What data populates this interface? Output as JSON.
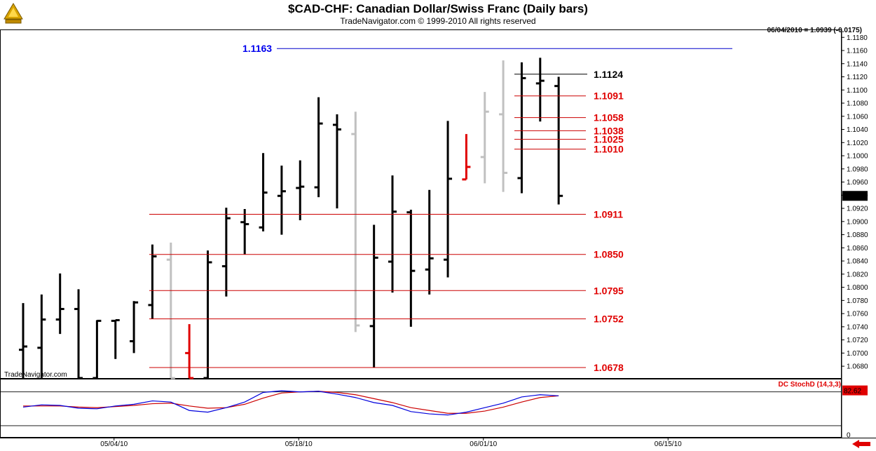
{
  "header": {
    "title": "$CAD-CHF:  Canadian Dollar/Swiss Franc  (Daily bars)",
    "subtitle": "TradeNavigator.com © 1999-2010 All rights reserved",
    "last_quote": "06/04/2010 = 1.0939 (-0.0175)"
  },
  "watermark": "TradeNavigator.com",
  "indicator": {
    "label": "DC StochD (14,3,3)",
    "last_value": "82.62",
    "scale_zero": "0"
  },
  "colors": {
    "up_bar": "#000000",
    "down_bar": "#000000",
    "gray_bar": "#c0c0c0",
    "red_bar": "#e00000",
    "level_line": "#cc0000",
    "level_text": "#e00000",
    "top_line": "#0000cc",
    "top_text": "#0000ee",
    "resist_line": "#000000",
    "stoch_k": "#0000dd",
    "stoch_d": "#cc0000"
  },
  "chart_data": {
    "type": "ohlc",
    "title": "$CAD-CHF:  Canadian Dollar/Swiss Franc  (Daily bars)",
    "ylim": [
      1.0662,
      1.1192
    ],
    "y_ticks": [
      "1.1180",
      "1.1160",
      "1.1140",
      "1.1120",
      "1.1100",
      "1.1080",
      "1.1060",
      "1.1040",
      "1.1020",
      "1.1000",
      "1.0980",
      "1.0960",
      "1.0940",
      "1.0920",
      "1.0900",
      "1.0880",
      "1.0860",
      "1.0840",
      "1.0820",
      "1.0800",
      "1.0780",
      "1.0760",
      "1.0740",
      "1.0720",
      "1.0700",
      "1.0680"
    ],
    "last_price_label": "1.0939",
    "x_labels": [
      {
        "label": "05/04/10",
        "index": 5
      },
      {
        "label": "05/18/10",
        "index": 15
      },
      {
        "label": "06/01/10",
        "index": 25
      },
      {
        "label": "06/15/10",
        "index": 35
      }
    ],
    "bars": [
      {
        "i": 0,
        "o": 1.0705,
        "h": 1.0776,
        "l": 1.064,
        "c": 1.071,
        "color": "up"
      },
      {
        "i": 1,
        "o": 1.0708,
        "h": 1.0789,
        "l": 1.064,
        "c": 1.0751,
        "color": "up"
      },
      {
        "i": 2,
        "o": 1.0751,
        "h": 1.0821,
        "l": 1.0729,
        "c": 1.0767,
        "color": "up"
      },
      {
        "i": 3,
        "o": 1.0767,
        "h": 1.0797,
        "l": 1.064,
        "c": 1.064,
        "color": "down"
      },
      {
        "i": 4,
        "o": 1.064,
        "h": 1.075,
        "l": 1.064,
        "c": 1.0749,
        "color": "up"
      },
      {
        "i": 5,
        "o": 1.0749,
        "h": 1.075,
        "l": 1.0691,
        "c": 1.075,
        "color": "up"
      },
      {
        "i": 6,
        "o": 1.0718,
        "h": 1.0779,
        "l": 1.07,
        "c": 1.0777,
        "color": "up"
      },
      {
        "i": 7,
        "o": 1.0773,
        "h": 1.0865,
        "l": 1.0752,
        "c": 1.0847,
        "color": "up"
      },
      {
        "i": 8,
        "o": 1.0842,
        "h": 1.0868,
        "l": 1.064,
        "c": 1.064,
        "color": "gray"
      },
      {
        "i": 9,
        "o": 1.07,
        "h": 1.0744,
        "l": 1.064,
        "c": 1.064,
        "color": "red"
      },
      {
        "i": 10,
        "o": 1.064,
        "h": 1.0856,
        "l": 1.064,
        "c": 1.0838,
        "color": "up"
      },
      {
        "i": 11,
        "o": 1.0832,
        "h": 1.0921,
        "l": 1.0786,
        "c": 1.0905,
        "color": "up"
      },
      {
        "i": 12,
        "o": 1.0899,
        "h": 1.0919,
        "l": 1.085,
        "c": 1.0896,
        "color": "up"
      },
      {
        "i": 13,
        "o": 1.0891,
        "h": 1.1004,
        "l": 1.0885,
        "c": 1.0944,
        "color": "up"
      },
      {
        "i": 14,
        "o": 1.0939,
        "h": 1.0985,
        "l": 1.088,
        "c": 1.0946,
        "color": "up"
      },
      {
        "i": 15,
        "o": 1.0951,
        "h": 1.0993,
        "l": 1.0902,
        "c": 1.0953,
        "color": "up"
      },
      {
        "i": 16,
        "o": 1.0952,
        "h": 1.1089,
        "l": 1.0937,
        "c": 1.1049,
        "color": "up"
      },
      {
        "i": 17,
        "o": 1.1047,
        "h": 1.1063,
        "l": 1.092,
        "c": 1.104,
        "color": "down"
      },
      {
        "i": 18,
        "o": 1.1033,
        "h": 1.1067,
        "l": 1.0732,
        "c": 1.0742,
        "color": "gray"
      },
      {
        "i": 19,
        "o": 1.0741,
        "h": 1.0895,
        "l": 1.0678,
        "c": 1.0845,
        "color": "up"
      },
      {
        "i": 20,
        "o": 1.0839,
        "h": 1.097,
        "l": 1.0792,
        "c": 1.0915,
        "color": "up"
      },
      {
        "i": 21,
        "o": 1.0914,
        "h": 1.0918,
        "l": 1.074,
        "c": 1.0825,
        "color": "down"
      },
      {
        "i": 22,
        "o": 1.0827,
        "h": 1.0948,
        "l": 1.0789,
        "c": 1.0844,
        "color": "up"
      },
      {
        "i": 23,
        "o": 1.0842,
        "h": 1.1053,
        "l": 1.0815,
        "c": 1.0965,
        "color": "up"
      },
      {
        "i": 24,
        "o": 1.0964,
        "h": 1.1033,
        "l": 1.0964,
        "c": 1.0983,
        "color": "red"
      },
      {
        "i": 25,
        "o": 1.0998,
        "h": 1.1097,
        "l": 1.0958,
        "c": 1.1067,
        "color": "gray"
      },
      {
        "i": 26,
        "o": 1.1063,
        "h": 1.1145,
        "l": 1.0945,
        "c": 1.0974,
        "color": "gray"
      },
      {
        "i": 27,
        "o": 1.0966,
        "h": 1.1142,
        "l": 1.0943,
        "c": 1.1118,
        "color": "up"
      },
      {
        "i": 28,
        "o": 1.111,
        "h": 1.1149,
        "l": 1.1052,
        "c": 1.1114,
        "color": "down"
      },
      {
        "i": 29,
        "o": 1.1106,
        "h": 1.112,
        "l": 1.0926,
        "c": 1.0939,
        "color": "down"
      }
    ],
    "levels": [
      {
        "value": 1.1163,
        "label": "1.1163",
        "kind": "top"
      },
      {
        "value": 1.1124,
        "label": "1.1124",
        "kind": "resist"
      },
      {
        "value": 1.1091,
        "label": "1.1091",
        "kind": "fib"
      },
      {
        "value": 1.1058,
        "label": "1.1058",
        "kind": "fib"
      },
      {
        "value": 1.1038,
        "label": "1.1038",
        "kind": "fib"
      },
      {
        "value": 1.1025,
        "label": "1.1025",
        "kind": "fib"
      },
      {
        "value": 1.101,
        "label": "1.1010",
        "kind": "fib"
      },
      {
        "value": 1.0911,
        "label": "1.0911",
        "kind": "fib"
      },
      {
        "value": 1.085,
        "label": "1.0850",
        "kind": "fib"
      },
      {
        "value": 1.0795,
        "label": "1.0795",
        "kind": "fib"
      },
      {
        "value": 1.0752,
        "label": "1.0752",
        "kind": "fib"
      },
      {
        "value": 1.0678,
        "label": "1.0678",
        "kind": "fib"
      }
    ],
    "stoch_ylim": [
      0,
      100
    ],
    "stoch_k": [
      53,
      57,
      56,
      51,
      50,
      55,
      58,
      64,
      62,
      47,
      44,
      52,
      62,
      79,
      82,
      80,
      81,
      76,
      70,
      61,
      56,
      45,
      41,
      39,
      44,
      52,
      60,
      71,
      75,
      73
    ],
    "stoch_d": [
      55,
      55,
      55,
      53,
      52,
      54,
      56,
      59,
      60,
      55,
      51,
      52,
      58,
      69,
      78,
      80,
      81,
      79,
      75,
      68,
      61,
      52,
      47,
      42,
      42,
      46,
      53,
      62,
      70,
      73
    ]
  }
}
